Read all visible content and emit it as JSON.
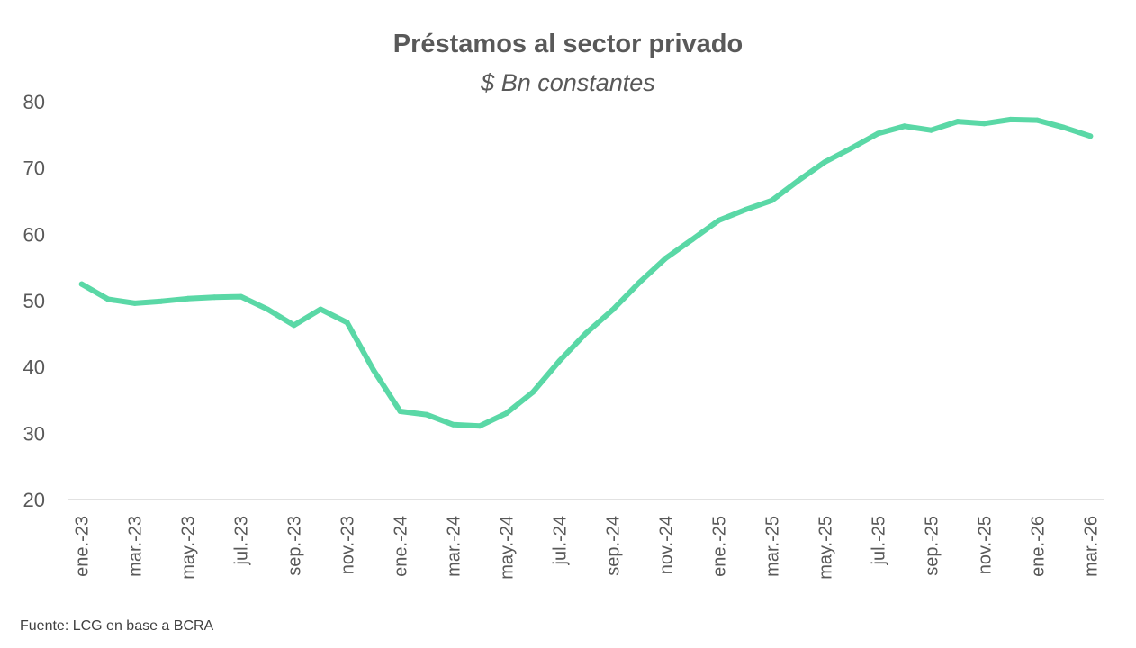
{
  "chart_data": {
    "type": "line",
    "title": "Préstamos al sector privado",
    "subtitle": "$ Bn constantes",
    "xlabel": "",
    "ylabel": "",
    "ylim": [
      20,
      80
    ],
    "yticks": [
      20,
      30,
      40,
      50,
      60,
      70,
      80
    ],
    "grid": false,
    "legend": "none",
    "x": [
      "ene.-23",
      "feb.-23",
      "mar.-23",
      "abr.-23",
      "may.-23",
      "jun.-23",
      "jul.-23",
      "ago.-23",
      "sep.-23",
      "oct.-23",
      "nov.-23",
      "dic.-23",
      "ene.-24",
      "feb.-24",
      "mar.-24",
      "abr.-24",
      "may.-24",
      "jun.-24",
      "jul.-24",
      "ago.-24",
      "sep.-24",
      "oct.-24",
      "nov.-24",
      "dic.-24",
      "ene.-25",
      "feb.-25",
      "mar.-25",
      "abr.-25",
      "may.-25",
      "jun.-25",
      "jul.-25",
      "ago.-25",
      "sep.-25",
      "oct.-25",
      "nov.-25",
      "dic.-25",
      "ene.-26",
      "feb.-26",
      "mar.-26"
    ],
    "x_tick_labels": [
      "ene.-23",
      "mar.-23",
      "may.-23",
      "jul.-23",
      "sep.-23",
      "nov.-23",
      "ene.-24",
      "mar.-24",
      "may.-24",
      "jul.-24",
      "sep.-24",
      "nov.-24",
      "ene.-25",
      "mar.-25",
      "may.-25",
      "jul.-25",
      "sep.-25",
      "nov.-25",
      "ene.-26",
      "mar.-26"
    ],
    "series": [
      {
        "name": "Préstamos al sector privado",
        "color": "#5ad8a6",
        "values": [
          52.5,
          50.2,
          49.6,
          49.9,
          50.3,
          50.5,
          50.6,
          48.7,
          46.3,
          48.7,
          46.7,
          39.5,
          33.3,
          32.8,
          31.3,
          31.1,
          33.0,
          36.2,
          40.9,
          45.1,
          48.6,
          52.7,
          56.4,
          59.2,
          62.1,
          63.7,
          65.1,
          68.1,
          70.9,
          73.0,
          75.2,
          76.3,
          75.7,
          77.0,
          76.7,
          77.3,
          77.2,
          76.1,
          74.8
        ]
      }
    ]
  },
  "source": "Fuente: LCG en base a BCRA"
}
